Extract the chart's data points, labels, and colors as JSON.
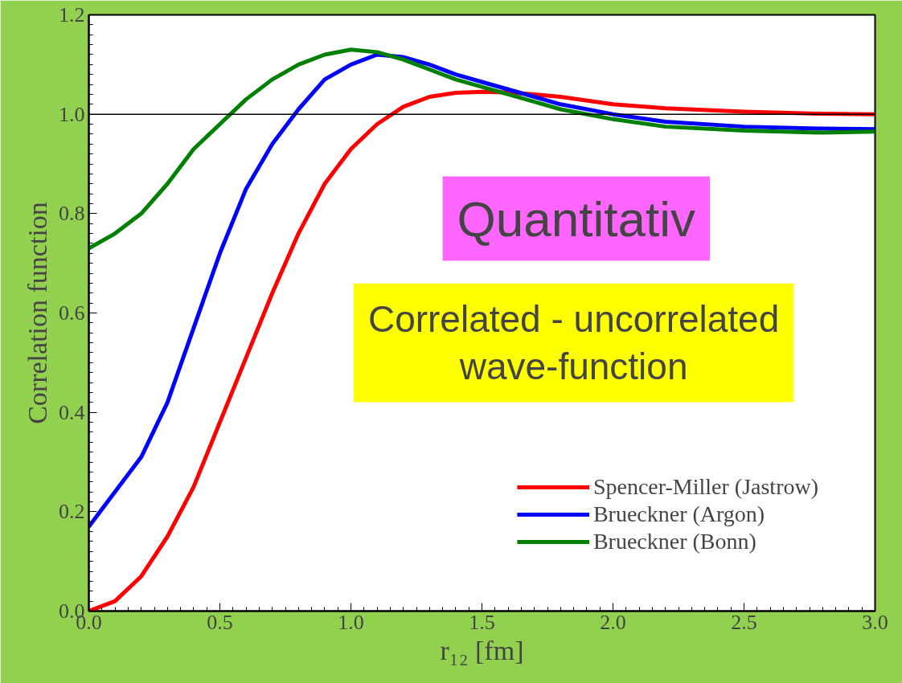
{
  "chart_data": {
    "type": "line",
    "xlabel": "r₁₂ [fm]",
    "ylabel": "Correlation function",
    "xlim": [
      0,
      3
    ],
    "ylim": [
      0,
      1.2
    ],
    "xticks": [
      {
        "value": 0,
        "label": "0.0"
      },
      {
        "value": 0.5,
        "label": "0.5"
      },
      {
        "value": 1,
        "label": "1.0"
      },
      {
        "value": 1.5,
        "label": "1.5"
      },
      {
        "value": 2,
        "label": "2.0"
      },
      {
        "value": 2.5,
        "label": "2.5"
      },
      {
        "value": 3,
        "label": "3.0"
      }
    ],
    "yticks": [
      {
        "value": 0,
        "label": "0.0"
      },
      {
        "value": 0.2,
        "label": "0.2"
      },
      {
        "value": 0.4,
        "label": "0.4"
      },
      {
        "value": 0.6,
        "label": "0.6"
      },
      {
        "value": 0.8,
        "label": "0.8"
      },
      {
        "value": 1,
        "label": "1.0"
      },
      {
        "value": 1.2,
        "label": "1.2"
      }
    ],
    "x": [
      0,
      0.1,
      0.2,
      0.3,
      0.4,
      0.5,
      0.6,
      0.7,
      0.8,
      0.9,
      1.0,
      1.1,
      1.2,
      1.3,
      1.4,
      1.5,
      1.6,
      1.7,
      1.8,
      2.0,
      2.2,
      2.5,
      2.8,
      3.0
    ],
    "series": [
      {
        "name": "Spencer-Miller (Jastrow)",
        "color": "#ff0000",
        "values": [
          0.0,
          0.02,
          0.07,
          0.15,
          0.25,
          0.38,
          0.51,
          0.64,
          0.76,
          0.86,
          0.93,
          0.98,
          1.015,
          1.035,
          1.043,
          1.045,
          1.044,
          1.04,
          1.035,
          1.02,
          1.012,
          1.005,
          1.001,
          1.0
        ]
      },
      {
        "name": "Brueckner (Argon)",
        "color": "#0000ff",
        "values": [
          0.17,
          0.24,
          0.31,
          0.42,
          0.57,
          0.72,
          0.85,
          0.94,
          1.01,
          1.07,
          1.1,
          1.12,
          1.115,
          1.1,
          1.08,
          1.065,
          1.05,
          1.035,
          1.02,
          1.0,
          0.985,
          0.975,
          0.971,
          0.97
        ]
      },
      {
        "name": "Brueckner (Bonn)",
        "color": "#008000",
        "values": [
          0.73,
          0.76,
          0.8,
          0.86,
          0.93,
          0.98,
          1.03,
          1.07,
          1.1,
          1.12,
          1.13,
          1.125,
          1.11,
          1.09,
          1.07,
          1.055,
          1.04,
          1.025,
          1.01,
          0.99,
          0.975,
          0.967,
          0.963,
          0.965
        ]
      }
    ],
    "ref_lines": [
      {
        "axis": "y",
        "value": 1.0,
        "color": "#000000"
      }
    ],
    "annotations": [
      "Quantitativ",
      "Correlated - uncorrelated\nwave-function"
    ],
    "legend": "bottom right",
    "grid": false,
    "marker": "none",
    "line_style": "solid"
  }
}
